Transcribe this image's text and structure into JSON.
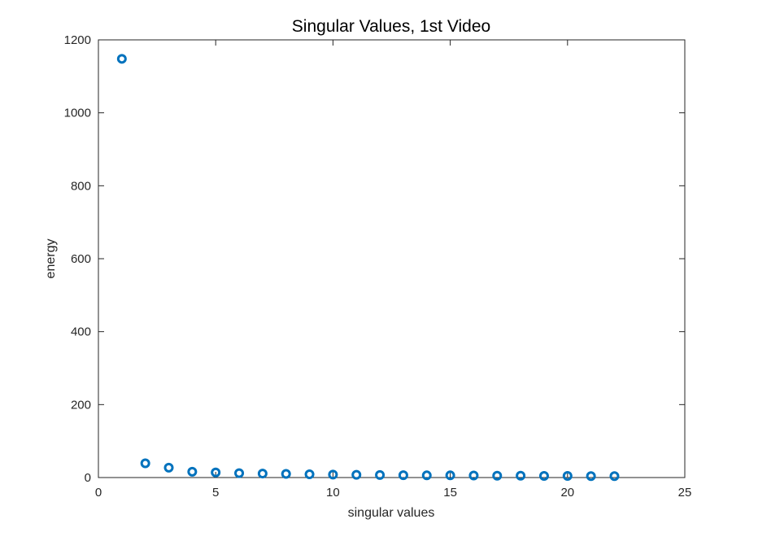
{
  "chart_data": {
    "type": "scatter",
    "title": "Singular Values, 1st Video",
    "xlabel": "singular values",
    "ylabel": "energy",
    "xlim": [
      0,
      25
    ],
    "ylim": [
      0,
      1200
    ],
    "xticks": [
      0,
      5,
      10,
      15,
      20,
      25
    ],
    "yticks": [
      0,
      200,
      400,
      600,
      800,
      1000,
      1200
    ],
    "grid": false,
    "marker": "circle-open",
    "marker_color": "#0072BD",
    "series": [
      {
        "x": [
          1,
          2,
          3,
          4,
          5,
          6,
          7,
          8,
          9,
          10,
          11,
          12,
          13,
          14,
          15,
          16,
          17,
          18,
          19,
          20,
          21,
          22
        ],
        "values": [
          1148,
          39,
          27,
          16,
          14,
          12,
          11,
          10,
          9,
          8,
          7.5,
          7,
          6.5,
          6,
          6,
          5.5,
          5,
          5,
          4.5,
          4.5,
          4,
          4
        ]
      }
    ]
  }
}
